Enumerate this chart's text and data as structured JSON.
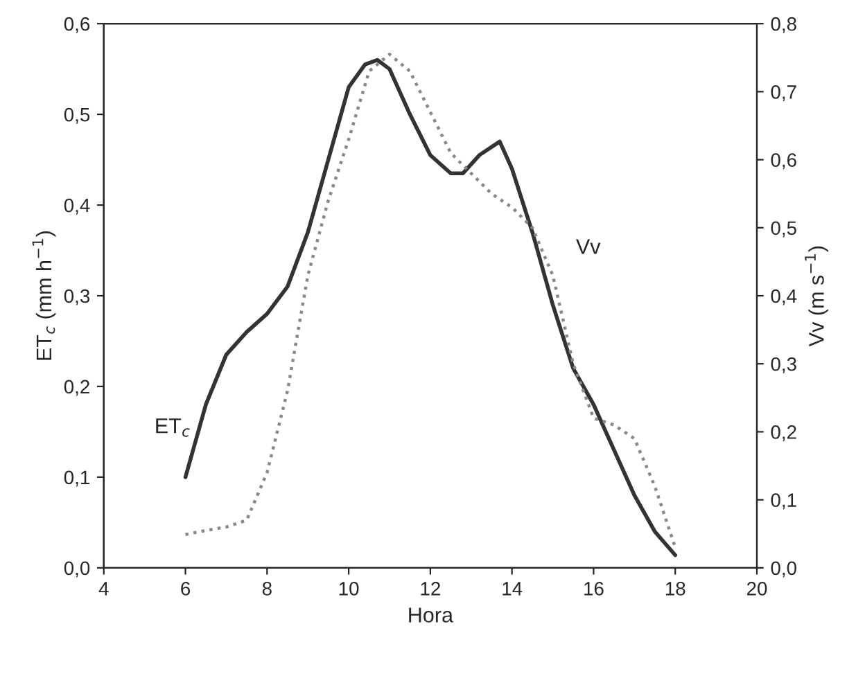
{
  "chart_data": {
    "type": "line",
    "xlabel": "Hora",
    "ylabel": "ET$_{c}$ (mm h$^{−1}$)",
    "y2label": "Vv (m s$^{−1}$)",
    "xlim": [
      4,
      20
    ],
    "xticks": [
      4,
      6,
      8,
      10,
      12,
      14,
      16,
      18,
      20
    ],
    "ylim": [
      0,
      0.6
    ],
    "yticks": [
      {
        "value": 0,
        "label": "0,0"
      },
      {
        "value": 0.1,
        "label": "0,1"
      },
      {
        "value": 0.2,
        "label": "0,2"
      },
      {
        "value": 0.3,
        "label": "0,3"
      },
      {
        "value": 0.4,
        "label": "0,4"
      },
      {
        "value": 0.5,
        "label": "0,5"
      },
      {
        "value": 0.6,
        "label": "0,6"
      }
    ],
    "y2lim": [
      0,
      0.8
    ],
    "y2ticks": [
      {
        "value": 0,
        "label": "0,0"
      },
      {
        "value": 0.1,
        "label": "0,1"
      },
      {
        "value": 0.2,
        "label": "0,2"
      },
      {
        "value": 0.3,
        "label": "0,3"
      },
      {
        "value": 0.4,
        "label": "0,4"
      },
      {
        "value": 0.5,
        "label": "0,5"
      },
      {
        "value": 0.6,
        "label": "0,6"
      },
      {
        "value": 0.7,
        "label": "0,7"
      },
      {
        "value": 0.8,
        "label": "0,8"
      }
    ],
    "grid": false,
    "legend": false,
    "series": [
      {
        "name": "ET$_{c}$",
        "color": "#333333",
        "line_style": "solid",
        "x": [
          6,
          6.5,
          7,
          7.5,
          8,
          8.5,
          9,
          9.5,
          10,
          10.4,
          10.7,
          11,
          11.5,
          12,
          12.5,
          12.8,
          13.2,
          13.7,
          14,
          14.5,
          15,
          15.5,
          16,
          16.5,
          17,
          17.5,
          18
        ],
        "values": [
          0.1,
          0.18,
          0.235,
          0.26,
          0.28,
          0.31,
          0.37,
          0.45,
          0.53,
          0.555,
          0.56,
          0.55,
          0.5,
          0.455,
          0.435,
          0.435,
          0.455,
          0.47,
          0.44,
          0.37,
          0.29,
          0.22,
          0.18,
          0.13,
          0.08,
          0.04,
          0.014
        ]
      },
      {
        "name": "Vv",
        "color": "#888888",
        "line_style": "dotted",
        "axis": "y2",
        "x": [
          6,
          6.5,
          7,
          7.5,
          8,
          8.5,
          9,
          9.5,
          10,
          10.5,
          11,
          11.5,
          12,
          12.5,
          13,
          13.5,
          14,
          14.5,
          15,
          15.5,
          16,
          16.5,
          17,
          17.5,
          18
        ],
        "values": [
          0.049,
          0.055,
          0.06,
          0.07,
          0.14,
          0.26,
          0.43,
          0.54,
          0.63,
          0.73,
          0.755,
          0.73,
          0.67,
          0.61,
          0.58,
          0.55,
          0.53,
          0.5,
          0.43,
          0.3,
          0.22,
          0.21,
          0.19,
          0.12,
          0.03
        ]
      }
    ]
  }
}
